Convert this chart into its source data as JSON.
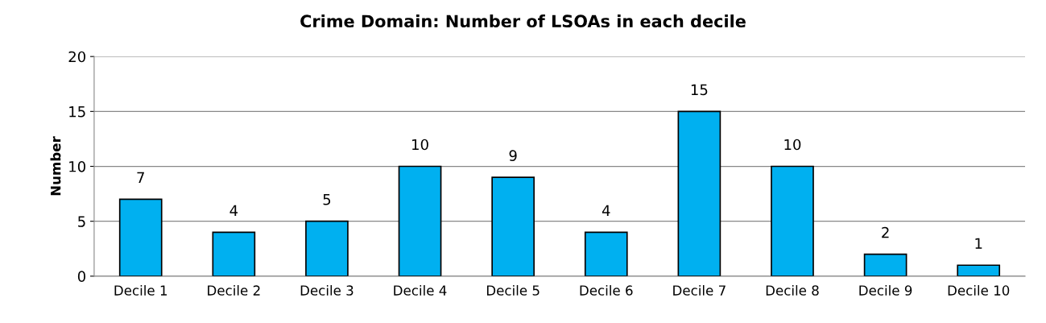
{
  "chart_data": {
    "type": "bar",
    "title": "Crime Domain: Number of LSOAs in each decile",
    "ylabel": "Number",
    "categories": [
      "Decile 1",
      "Decile 2",
      "Decile 3",
      "Decile 4",
      "Decile 5",
      "Decile 6",
      "Decile 7",
      "Decile 8",
      "Decile 9",
      "Decile 10"
    ],
    "values": [
      7,
      4,
      5,
      10,
      9,
      4,
      15,
      10,
      2,
      1
    ],
    "color": "#00b0f0",
    "ylim": [
      0,
      20
    ],
    "yticks": [
      0,
      5,
      10,
      15,
      20
    ],
    "grid": "y",
    "data_labels": true
  }
}
